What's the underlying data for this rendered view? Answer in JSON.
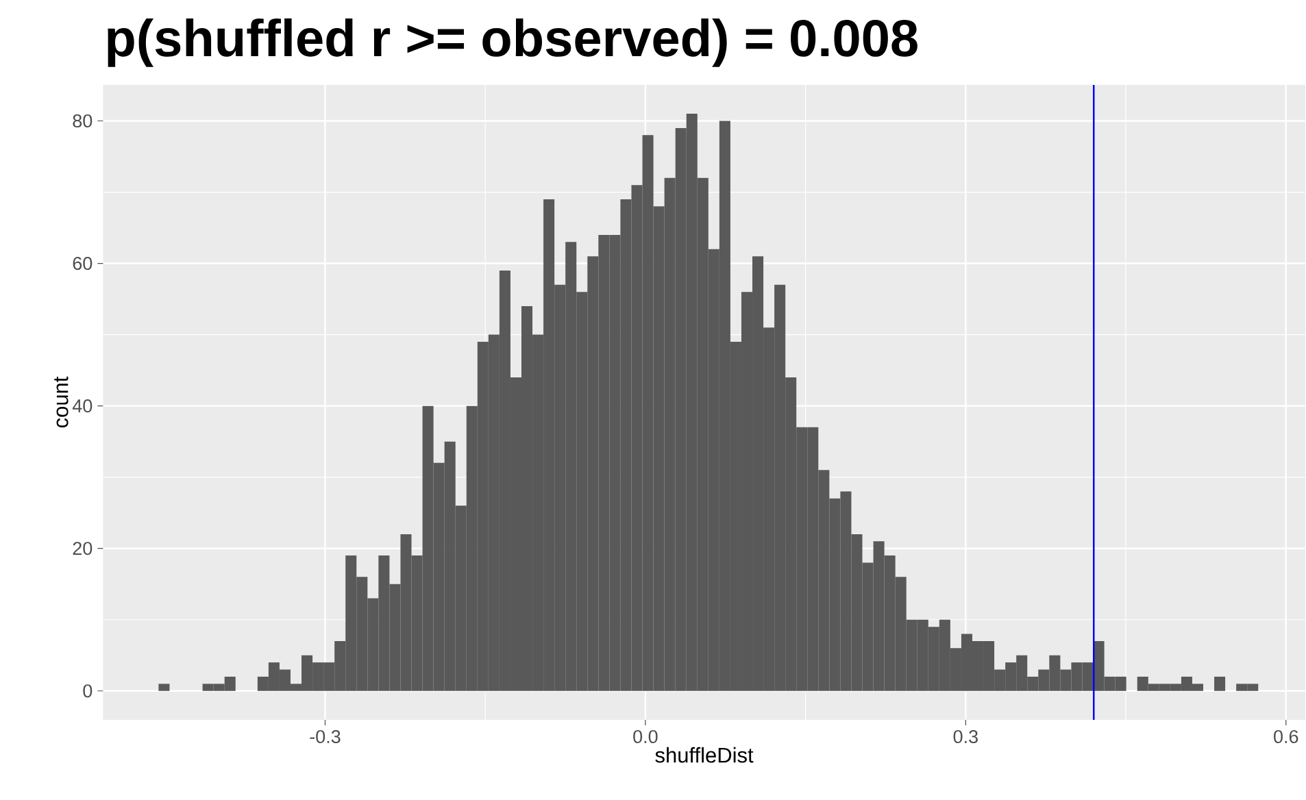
{
  "chart_data": {
    "type": "histogram",
    "title": "p(shuffled r >= observed) = 0.008",
    "xlabel": "shuffleDist",
    "ylabel": "count",
    "bins": [
      -0.456,
      -0.4457,
      -0.4354,
      -0.4251,
      -0.4148,
      -0.4045,
      -0.3942,
      -0.3839,
      -0.3736,
      -0.3633,
      -0.353,
      -0.3427,
      -0.3324,
      -0.3221,
      -0.3118,
      -0.3015,
      -0.2912,
      -0.2809,
      -0.2706,
      -0.2603,
      -0.25,
      -0.2397,
      -0.2294,
      -0.2191,
      -0.2088,
      -0.1985,
      -0.1882,
      -0.1779,
      -0.1676,
      -0.1573,
      -0.147,
      -0.1367,
      -0.1264,
      -0.1161,
      -0.1058,
      -0.0955,
      -0.0852,
      -0.0749,
      -0.0646,
      -0.0543,
      -0.044,
      -0.0337,
      -0.0234,
      -0.0131,
      -0.0028,
      0.0075,
      0.0178,
      0.0281,
      0.0384,
      0.0487,
      0.059,
      0.0693,
      0.0796,
      0.0899,
      0.1002,
      0.1105,
      0.1208,
      0.1311,
      0.1414,
      0.1517,
      0.162,
      0.1723,
      0.1826,
      0.1929,
      0.2032,
      0.2135,
      0.2238,
      0.2341,
      0.2444,
      0.2547,
      0.265,
      0.2753,
      0.2856,
      0.2959,
      0.3062,
      0.3165,
      0.3268,
      0.3371,
      0.3474,
      0.3577,
      0.368,
      0.3783,
      0.3886,
      0.3989,
      0.4092,
      0.4195,
      0.4298,
      0.4401,
      0.4504,
      0.4607,
      0.471,
      0.4813,
      0.4916,
      0.5019,
      0.5122,
      0.5225,
      0.5328,
      0.5431,
      0.5534,
      0.5637,
      0.574
    ],
    "values": [
      1,
      0,
      0,
      0,
      1,
      1,
      2,
      0,
      0,
      2,
      4,
      3,
      1,
      5,
      4,
      4,
      7,
      19,
      16,
      13,
      19,
      15,
      22,
      19,
      40,
      32,
      35,
      26,
      40,
      49,
      50,
      59,
      44,
      54,
      50,
      69,
      57,
      63,
      56,
      61,
      64,
      64,
      69,
      71,
      78,
      68,
      72,
      79,
      81,
      72,
      62,
      80,
      49,
      56,
      61,
      51,
      57,
      44,
      37,
      37,
      31,
      27,
      28,
      22,
      18,
      21,
      19,
      16,
      10,
      10,
      9,
      10,
      6,
      8,
      7,
      7,
      3,
      4,
      5,
      2,
      3,
      5,
      3,
      4,
      4,
      7,
      2,
      2,
      0,
      2,
      1,
      1,
      1,
      2,
      1,
      0,
      2,
      0,
      1,
      1
    ],
    "color": "#595959",
    "ref_lines": [
      {
        "axis": "x",
        "value": 0.42,
        "color": "#0000ff"
      }
    ],
    "xlim": [
      -0.508,
      0.618
    ],
    "ylim": [
      -4.05,
      85.05
    ],
    "xticks": [
      -0.3,
      {
        "value": 0,
        "label": "0.0"
      },
      0.3,
      0.6
    ],
    "yticks": [
      0,
      20,
      40,
      60,
      80
    ],
    "grid": true
  }
}
